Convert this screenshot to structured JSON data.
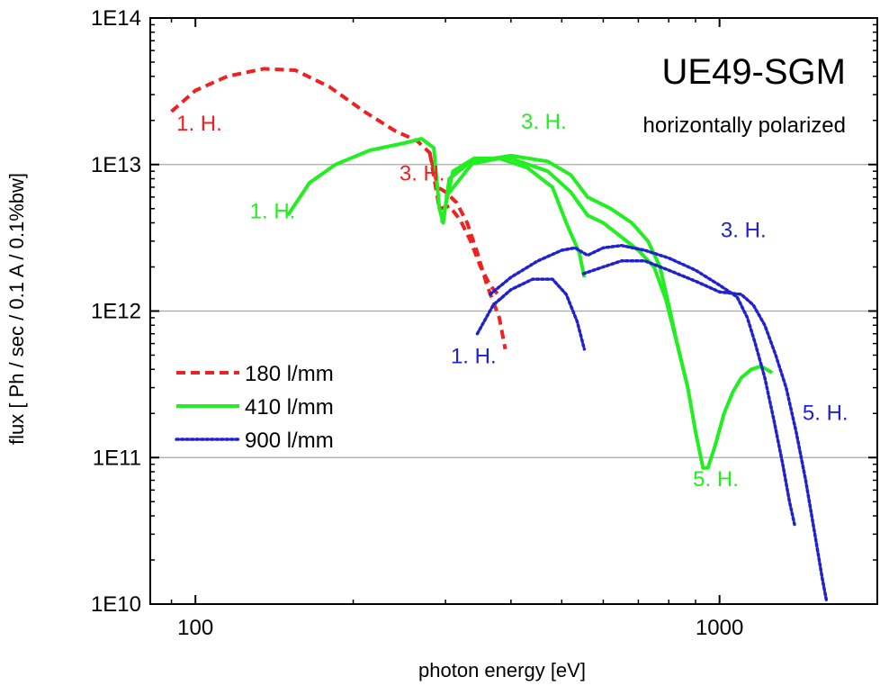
{
  "chart_data": {
    "type": "line",
    "title": "UE49-SGM",
    "subtitle": "horizontally polarized",
    "xlabel": "photon energy [eV]",
    "ylabel": "flux [ Ph / sec / 0.1 A / 0.1%bw]",
    "x_scale": "log",
    "y_scale": "log",
    "xlim": [
      82,
      2000
    ],
    "ylim": [
      10000000000.0,
      100000000000000.0
    ],
    "x_ticks": [
      100,
      1000
    ],
    "x_tick_labels": [
      "100",
      "1000"
    ],
    "y_ticks": [
      10000000000.0,
      100000000000.0,
      1000000000000.0,
      10000000000000.0,
      100000000000000.0
    ],
    "y_tick_labels": [
      "1E10",
      "1E11",
      "1E12",
      "1E13",
      "1E14"
    ],
    "grid": "horizontal",
    "legend_position": "left",
    "colors": {
      "s180": "#ee2222",
      "s410": "#22ee22",
      "s900": "#2222cc"
    },
    "series": [
      {
        "name": "180 l/mm",
        "style": "dashed",
        "segments": [
          [
            [
              90,
              23000000000000.0
            ],
            [
              100,
              32000000000000.0
            ],
            [
              115,
              40000000000000.0
            ],
            [
              135,
              45000000000000.0
            ],
            [
              155,
              44000000000000.0
            ],
            [
              180,
              34000000000000.0
            ],
            [
              210,
              23000000000000.0
            ],
            [
              240,
              17000000000000.0
            ],
            [
              265,
              14500000000000.0
            ],
            [
              280,
              12000000000000.0
            ],
            [
              290,
              7000000000000.0
            ],
            [
              300,
              6500000000000.0
            ],
            [
              315,
              5500000000000.0
            ],
            [
              330,
              4000000000000.0
            ],
            [
              345,
              2500000000000.0
            ],
            [
              360,
              1500000000000.0
            ],
            [
              380,
              900000000000.0
            ],
            [
              390,
              550000000000.0
            ]
          ],
          [
            [
              280,
              12000000000000.0
            ],
            [
              292,
              5000000000000.0
            ],
            [
              305,
              5200000000000.0
            ],
            [
              320,
              4200000000000.0
            ],
            [
              335,
              3000000000000.0
            ],
            [
              350,
              2000000000000.0
            ],
            [
              365,
              1500000000000.0
            ],
            [
              385,
              1200000000000.0
            ]
          ]
        ]
      },
      {
        "name": "410 l/mm",
        "style": "solid",
        "segments": [
          [
            [
              150,
              4500000000000.0
            ],
            [
              165,
              7500000000000.0
            ],
            [
              185,
              10000000000000.0
            ],
            [
              215,
              12500000000000.0
            ],
            [
              250,
              14000000000000.0
            ],
            [
              270,
              15000000000000.0
            ],
            [
              285,
              13000000000000.0
            ],
            [
              292,
              5000000000000.0
            ],
            [
              297,
              4000000000000.0
            ],
            [
              305,
              8000000000000.0
            ],
            [
              330,
              10000000000000.0
            ],
            [
              380,
              11000000000000.0
            ],
            [
              430,
              9500000000000.0
            ],
            [
              480,
              7000000000000.0
            ],
            [
              510,
              4000000000000.0
            ],
            [
              540,
              2500000000000.0
            ],
            [
              552,
              1700000000000.0
            ]
          ],
          [
            [
              295,
              4000000000000.0
            ],
            [
              310,
              9000000000000.0
            ],
            [
              340,
              11000000000000.0
            ],
            [
              400,
              11000000000000.0
            ],
            [
              470,
              9000000000000.0
            ],
            [
              520,
              6500000000000.0
            ],
            [
              560,
              4500000000000.0
            ],
            [
              600,
              4000000000000.0
            ],
            [
              650,
              3200000000000.0
            ],
            [
              700,
              2600000000000.0
            ],
            [
              750,
              2000000000000.0
            ],
            [
              790,
              1200000000000.0
            ],
            [
              830,
              600000000000.0
            ],
            [
              870,
              300000000000.0
            ],
            [
              900,
              150000000000.0
            ],
            [
              930,
              85000000000.0
            ],
            [
              950,
              85000000000.0
            ],
            [
              980,
              120000000000.0
            ],
            [
              1020,
              200000000000.0
            ],
            [
              1060,
              280000000000.0
            ],
            [
              1100,
              350000000000.0
            ],
            [
              1150,
              400000000000.0
            ],
            [
              1200,
              420000000000.0
            ],
            [
              1260,
              380000000000.0
            ]
          ],
          [
            [
              300,
              6000000000000.0
            ],
            [
              340,
              10500000000000.0
            ],
            [
              400,
              11500000000000.0
            ],
            [
              470,
              10500000000000.0
            ],
            [
              520,
              8500000000000.0
            ],
            [
              560,
              6000000000000.0
            ],
            [
              620,
              5000000000000.0
            ],
            [
              680,
              4000000000000.0
            ],
            [
              730,
              3000000000000.0
            ],
            [
              770,
              2000000000000.0
            ],
            [
              800,
              1100000000000.0
            ],
            [
              830,
              600000000000.0
            ],
            [
              870,
              300000000000.0
            ]
          ]
        ]
      },
      {
        "name": "900 l/mm",
        "style": "dotted",
        "segments": [
          [
            [
              345,
              700000000000.0
            ],
            [
              370,
              1100000000000.0
            ],
            [
              400,
              1400000000000.0
            ],
            [
              440,
              1650000000000.0
            ],
            [
              480,
              1650000000000.0
            ],
            [
              510,
              1300000000000.0
            ],
            [
              535,
              850000000000.0
            ],
            [
              552,
              550000000000.0
            ]
          ],
          [
            [
              365,
              1300000000000.0
            ],
            [
              400,
              1700000000000.0
            ],
            [
              450,
              2200000000000.0
            ],
            [
              500,
              2600000000000.0
            ],
            [
              530,
              2700000000000.0
            ],
            [
              560,
              2400000000000.0
            ],
            [
              600,
              2700000000000.0
            ],
            [
              650,
              2800000000000.0
            ],
            [
              720,
              2600000000000.0
            ],
            [
              800,
              2300000000000.0
            ],
            [
              900,
              1900000000000.0
            ],
            [
              1000,
              1500000000000.0
            ],
            [
              1080,
              1250000000000.0
            ],
            [
              1130,
              900000000000.0
            ],
            [
              1170,
              600000000000.0
            ],
            [
              1220,
              350000000000.0
            ],
            [
              1270,
              180000000000.0
            ],
            [
              1320,
              90000000000.0
            ],
            [
              1360,
              50000000000.0
            ],
            [
              1390,
              35000000000.0
            ]
          ],
          [
            [
              550,
              1800000000000.0
            ],
            [
              600,
              2000000000000.0
            ],
            [
              650,
              2200000000000.0
            ],
            [
              720,
              2200000000000.0
            ],
            [
              800,
              1900000000000.0
            ],
            [
              900,
              1600000000000.0
            ],
            [
              1000,
              1350000000000.0
            ],
            [
              1100,
              1300000000000.0
            ],
            [
              1160,
              1100000000000.0
            ],
            [
              1220,
              800000000000.0
            ],
            [
              1280,
              500000000000.0
            ],
            [
              1340,
              300000000000.0
            ],
            [
              1400,
              150000000000.0
            ],
            [
              1460,
              70000000000.0
            ],
            [
              1520,
              30000000000.0
            ],
            [
              1570,
              15000000000.0
            ],
            [
              1600,
              10500000000.0
            ]
          ]
        ]
      }
    ],
    "annotations": [
      {
        "text": "1. H.",
        "x": 92,
        "y": 17000000000000.0,
        "color": "#ee2222"
      },
      {
        "text": "3. H.",
        "x": 245,
        "y": 7800000000000.0,
        "color": "#ee2222"
      },
      {
        "text": "1. H.",
        "x": 127,
        "y": 4300000000000.0,
        "color": "#22ee22"
      },
      {
        "text": "3. H.",
        "x": 418,
        "y": 17500000000000.0,
        "color": "#22ee22"
      },
      {
        "text": "5. H.",
        "x": 890,
        "y": 64000000000.0,
        "color": "#22ee22"
      },
      {
        "text": "1. H.",
        "x": 307,
        "y": 440000000000.0,
        "color": "#2222cc"
      },
      {
        "text": "3. H.",
        "x": 1005,
        "y": 3200000000000.0,
        "color": "#2222cc"
      },
      {
        "text": "5. H.",
        "x": 1440,
        "y": 180000000000.0,
        "color": "#2222cc"
      }
    ]
  }
}
